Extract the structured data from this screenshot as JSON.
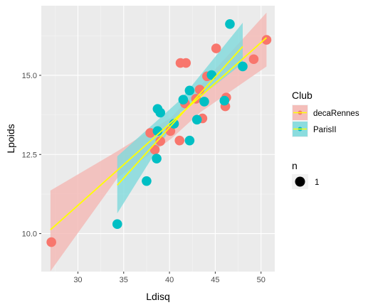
{
  "chart_data": {
    "type": "scatter",
    "xlabel": "Ldisq",
    "ylabel": "Lpoids",
    "xlim": [
      26,
      51.5
    ],
    "ylim": [
      8.8,
      17.2
    ],
    "x_ticks": [
      30,
      35,
      40,
      45,
      50
    ],
    "y_ticks": [
      10.0,
      12.5,
      15.0
    ],
    "x_tick_labels": [
      "30",
      "35",
      "40",
      "45",
      "50"
    ],
    "y_tick_labels": [
      "10.0",
      "12.5",
      "15.0"
    ],
    "grid": true,
    "legend": {
      "placement": "right",
      "color_title": "Club",
      "size_title": "n",
      "size_label": "1"
    },
    "series": [
      {
        "name": "decaRennes",
        "color": "#F8766D",
        "fill": "#F4B8B4",
        "points": [
          {
            "x": 27.1,
            "y": 9.73
          },
          {
            "x": 37.9,
            "y": 13.18
          },
          {
            "x": 38.4,
            "y": 12.65
          },
          {
            "x": 39.0,
            "y": 12.92
          },
          {
            "x": 40.1,
            "y": 13.24
          },
          {
            "x": 41.1,
            "y": 12.94
          },
          {
            "x": 41.2,
            "y": 15.39
          },
          {
            "x": 41.8,
            "y": 15.39
          },
          {
            "x": 41.7,
            "y": 14.11
          },
          {
            "x": 42.9,
            "y": 14.26
          },
          {
            "x": 43.3,
            "y": 14.55
          },
          {
            "x": 43.6,
            "y": 13.64
          },
          {
            "x": 44.1,
            "y": 14.97
          },
          {
            "x": 45.1,
            "y": 15.85
          },
          {
            "x": 46.1,
            "y": 14.02
          },
          {
            "x": 46.2,
            "y": 14.3
          },
          {
            "x": 49.2,
            "y": 15.51
          },
          {
            "x": 50.6,
            "y": 16.12
          }
        ],
        "fit": {
          "x": [
            27.0,
            50.6
          ],
          "y": [
            10.12,
            16.19
          ]
        },
        "band": {
          "x": [
            27.0,
            34.3,
            40.2,
            43.4,
            50.6
          ],
          "lower": [
            8.81,
            11.75,
            13.0,
            13.84,
            15.28
          ],
          "upper": [
            11.36,
            12.6,
            13.67,
            14.68,
            16.98
          ]
        }
      },
      {
        "name": "ParisII",
        "color": "#00BFC4",
        "fill": "#7FD9DC",
        "points": [
          {
            "x": 34.3,
            "y": 10.3
          },
          {
            "x": 37.5,
            "y": 11.66
          },
          {
            "x": 38.6,
            "y": 12.37
          },
          {
            "x": 38.7,
            "y": 13.94
          },
          {
            "x": 39.0,
            "y": 13.82
          },
          {
            "x": 38.7,
            "y": 13.24
          },
          {
            "x": 40.5,
            "y": 13.47
          },
          {
            "x": 41.5,
            "y": 14.23
          },
          {
            "x": 42.2,
            "y": 14.52
          },
          {
            "x": 42.2,
            "y": 12.94
          },
          {
            "x": 43.0,
            "y": 13.6
          },
          {
            "x": 43.8,
            "y": 14.17
          },
          {
            "x": 44.6,
            "y": 15.01
          },
          {
            "x": 46.0,
            "y": 14.2
          },
          {
            "x": 46.6,
            "y": 16.62
          },
          {
            "x": 48.0,
            "y": 15.28
          }
        ],
        "fit": {
          "x": [
            34.3,
            48.0
          ],
          "y": [
            11.53,
            15.91
          ]
        },
        "band": {
          "x": [
            34.3,
            41.2,
            48.0
          ],
          "lower": [
            10.64,
            13.83,
            15.38
          ],
          "upper": [
            12.44,
            14.23,
            16.66
          ]
        }
      }
    ],
    "fit_line_color": "#FFFF00"
  }
}
